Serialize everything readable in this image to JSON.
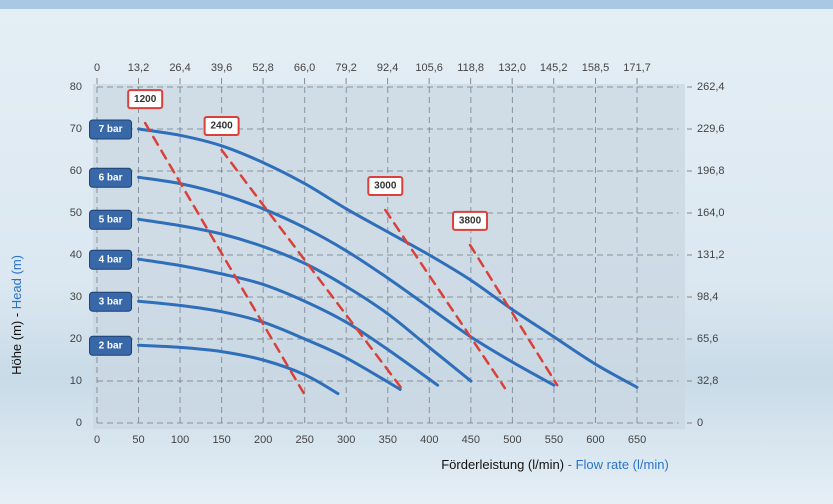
{
  "chart_data": {
    "type": "line",
    "y_label": "Höhe (m) - ",
    "y_label_en": "Head (m)",
    "x_label": "Förderleistung (l/min)",
    "x_label_en": " - Flow rate (l/min)",
    "xlim": [
      0,
      700
    ],
    "xticks": [
      0,
      50,
      100,
      150,
      200,
      250,
      300,
      350,
      400,
      450,
      500,
      550,
      600,
      650
    ],
    "ylim": [
      0,
      80
    ],
    "yticks": [
      0,
      10,
      20,
      30,
      40,
      50,
      60,
      70,
      80
    ],
    "x2lim": [
      0,
      184.9
    ],
    "x2ticks": [
      0,
      {
        "value": 13.2,
        "label": "13,2"
      },
      {
        "value": 26.4,
        "label": "26,4"
      },
      {
        "value": 39.6,
        "label": "39,6"
      },
      {
        "value": 52.8,
        "label": "52,8"
      },
      {
        "value": 66.0,
        "label": "66,0"
      },
      {
        "value": 79.2,
        "label": "79,2"
      },
      {
        "value": 92.4,
        "label": "92,4"
      },
      {
        "value": 105.6,
        "label": "105,6"
      },
      {
        "value": 118.8,
        "label": "118,8"
      },
      {
        "value": 132.0,
        "label": "132,0"
      },
      {
        "value": 145.2,
        "label": "145,2"
      },
      {
        "value": 158.5,
        "label": "158,5"
      },
      {
        "value": 171.7,
        "label": "171,7"
      }
    ],
    "y2lim": [
      0,
      262.4
    ],
    "y2ticks": [
      0,
      {
        "value": 32.8,
        "label": "32,8"
      },
      {
        "value": 65.6,
        "label": "65,6"
      },
      {
        "value": 98.4,
        "label": "98,4"
      },
      {
        "value": 131.2,
        "label": "131,2"
      },
      {
        "value": 164.0,
        "label": "164,0"
      },
      {
        "value": 196.8,
        "label": "196,8"
      },
      {
        "value": 229.6,
        "label": "229,6"
      },
      {
        "value": 262.4,
        "label": "262,4"
      }
    ],
    "grid": true,
    "series": [
      {
        "name": "7 bar",
        "color": "#2f6fba",
        "dashed": false,
        "x": [
          50,
          100,
          150,
          200,
          250,
          300,
          350,
          400,
          450,
          500,
          550,
          600,
          650
        ],
        "values": [
          70,
          68.5,
          66,
          62,
          57,
          51,
          45.5,
          40,
          34,
          27,
          20.5,
          14,
          8.5
        ]
      },
      {
        "name": "6 bar",
        "color": "#2f6fba",
        "dashed": false,
        "x": [
          50,
          100,
          150,
          200,
          250,
          300,
          350,
          400,
          450,
          500,
          550
        ],
        "values": [
          58.5,
          57,
          54.5,
          51,
          46.5,
          41,
          34.5,
          27.5,
          20.5,
          14.5,
          9
        ]
      },
      {
        "name": "5 bar",
        "color": "#2f6fba",
        "dashed": false,
        "x": [
          50,
          100,
          150,
          200,
          250,
          300,
          350,
          400,
          450
        ],
        "values": [
          48.5,
          47,
          45,
          42,
          38,
          32.5,
          26,
          18,
          10
        ]
      },
      {
        "name": "4 bar",
        "color": "#2f6fba",
        "dashed": false,
        "x": [
          50,
          100,
          150,
          200,
          250,
          300,
          350,
          410
        ],
        "values": [
          39,
          37.5,
          35.5,
          33,
          29,
          24,
          17.5,
          9
        ]
      },
      {
        "name": "3 bar",
        "color": "#2f6fba",
        "dashed": false,
        "x": [
          50,
          100,
          150,
          200,
          250,
          300,
          365
        ],
        "values": [
          29,
          28,
          26.5,
          24,
          20,
          15.5,
          8
        ]
      },
      {
        "name": "2 bar",
        "color": "#2f6fba",
        "dashed": false,
        "x": [
          50,
          100,
          150,
          200,
          250,
          290
        ],
        "values": [
          18.5,
          18,
          17,
          15,
          11.5,
          7
        ]
      },
      {
        "name": "1200",
        "color": "#d9413a",
        "dashed": true,
        "x": [
          58,
          250
        ],
        "values": [
          71.4,
          6.7
        ]
      },
      {
        "name": "2400",
        "color": "#d9413a",
        "dashed": true,
        "x": [
          150,
          368
        ],
        "values": [
          65,
          7.9
        ]
      },
      {
        "name": "3000",
        "color": "#d9413a",
        "dashed": true,
        "x": [
          347,
          491
        ],
        "values": [
          50.7,
          8.3
        ]
      },
      {
        "name": "3800",
        "color": "#d9413a",
        "dashed": true,
        "x": [
          449,
          554
        ],
        "values": [
          42.4,
          9
        ]
      }
    ]
  }
}
